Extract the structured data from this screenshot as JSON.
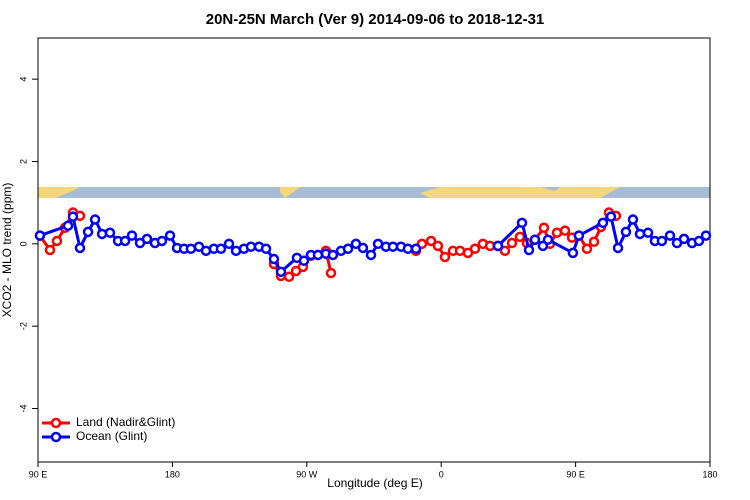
{
  "chart_data": {
    "type": "line",
    "title": "20N-25N March (Ver 9)   2014-09-06 to 2018-12-31",
    "x_label": "Longitude (deg E)",
    "y_label": "XCO2 - MLO trend (ppm)",
    "xlim": [
      90,
      540
    ],
    "xticks": [
      {
        "value": 90,
        "label": "90 E"
      },
      180,
      {
        "value": 270,
        "label": "90 W"
      },
      {
        "value": 360,
        "label": "0"
      },
      {
        "value": 450,
        "label": "90 E"
      },
      180
    ],
    "ylim": [
      -5.3,
      5.0
    ],
    "yticks": [
      -4,
      -2,
      0,
      2,
      4
    ],
    "legend": "bottom-left",
    "series": [
      {
        "name": "Land (Nadir&Glint)",
        "color": "#ff0000",
        "x": [
          91.3,
          98.0,
          102.7,
          108.1,
          113.4,
          118.1,
          null,
          248.0,
          252.7,
          258.1,
          262.8,
          267.4,
          272.8,
          277.5,
          282.8,
          286.2,
          null,
          343.1,
          347.1,
          353.2,
          357.8,
          362.5,
          367.9,
          372.6,
          377.9,
          382.6,
          387.9,
          392.7,
          398.0,
          402.7,
          407.4,
          412.7,
          417.4,
          422.8,
          428.8,
          432.8,
          437.5,
          442.9,
          447.6,
          452.2,
          457.6,
          462.3,
          467.0,
          472.3,
          477.0
        ],
        "values": [
          0.2,
          -0.15,
          0.07,
          0.39,
          0.76,
          0.68,
          null,
          -0.49,
          -0.78,
          -0.8,
          -0.66,
          -0.56,
          -0.29,
          -0.27,
          -0.17,
          -0.71,
          null,
          -0.17,
          0.0,
          0.07,
          -0.05,
          -0.32,
          -0.17,
          -0.17,
          -0.22,
          -0.12,
          0.0,
          -0.05,
          -0.05,
          -0.17,
          0.02,
          0.17,
          0.02,
          0.1,
          0.39,
          0.0,
          0.27,
          0.32,
          0.15,
          0.2,
          -0.12,
          0.05,
          0.41,
          0.76,
          0.68
        ]
      },
      {
        "name": "Ocean (Glint)",
        "color": "#0000ff",
        "x": [
          91.3,
          110.1,
          113.4,
          118.1,
          123.5,
          128.2,
          132.9,
          138.2,
          143.6,
          148.3,
          152.9,
          158.3,
          163.0,
          168.3,
          173.0,
          178.4,
          183.1,
          187.8,
          192.4,
          197.8,
          202.5,
          207.8,
          212.5,
          217.9,
          222.6,
          227.9,
          232.6,
          238.0,
          242.7,
          248.0,
          252.7,
          263.4,
          268.1,
          272.8,
          277.5,
          282.8,
          287.5,
          292.9,
          297.6,
          302.9,
          307.6,
          313.0,
          317.7,
          323.0,
          327.7,
          333.1,
          337.7,
          343.1,
          null,
          398.0,
          414.1,
          418.8,
          422.8,
          428.1,
          431.5,
          448.2,
          452.2,
          468.3,
          473.7,
          478.4,
          483.7,
          488.4,
          493.1,
          498.5,
          503.1,
          507.8,
          513.2,
          517.9,
          522.6,
          528.0,
          532.6,
          537.3
        ],
        "values": [
          0.2,
          0.44,
          0.66,
          -0.1,
          0.29,
          0.59,
          0.24,
          0.27,
          0.07,
          0.07,
          0.2,
          0.02,
          0.12,
          0.02,
          0.07,
          0.2,
          -0.1,
          -0.12,
          -0.12,
          -0.07,
          -0.17,
          -0.12,
          -0.12,
          0.0,
          -0.17,
          -0.12,
          -0.07,
          -0.07,
          -0.12,
          -0.37,
          -0.68,
          -0.34,
          -0.41,
          -0.27,
          -0.27,
          -0.24,
          -0.27,
          -0.17,
          -0.12,
          0.0,
          -0.1,
          -0.27,
          0.0,
          -0.07,
          -0.07,
          -0.07,
          -0.12,
          -0.12,
          null,
          -0.05,
          0.51,
          -0.15,
          0.1,
          -0.05,
          0.1,
          -0.22,
          0.2,
          0.51,
          0.66,
          -0.1,
          0.29,
          0.59,
          0.24,
          0.27,
          0.07,
          0.07,
          0.2,
          0.02,
          0.12,
          0.02,
          0.07,
          0.2
        ]
      }
    ]
  }
}
